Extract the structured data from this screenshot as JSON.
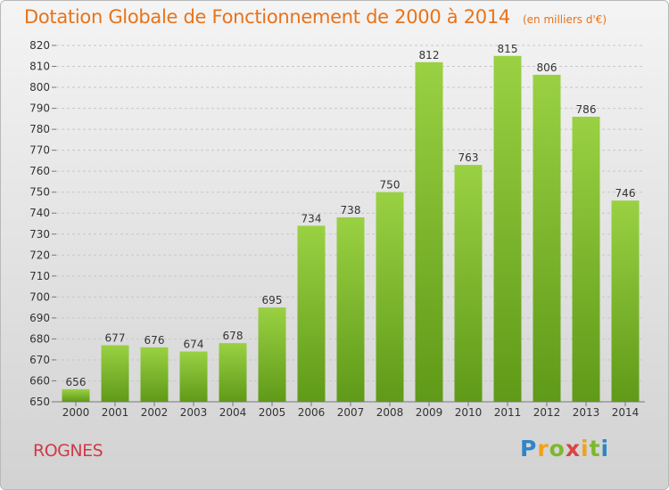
{
  "title": "Dotation Globale de Fonctionnement de 2000 à 2014",
  "unit_note": "(en milliers d'€)",
  "commune": "ROGNES",
  "brand": "Proxiti",
  "colors": {
    "title": "#e8731a",
    "commune": "#cf3a48",
    "bar_top": "#9ad143",
    "bar_bottom": "#5f9a18",
    "grid": "#c7c7c7"
  },
  "chart_data": {
    "type": "bar",
    "title": "Dotation Globale de Fonctionnement de 2000 à 2014",
    "subtitle": "(en milliers d'€)",
    "categories": [
      "2000",
      "2001",
      "2002",
      "2003",
      "2004",
      "2005",
      "2006",
      "2007",
      "2008",
      "2009",
      "2010",
      "2011",
      "2012",
      "2013",
      "2014"
    ],
    "values": [
      656,
      677,
      676,
      674,
      678,
      695,
      734,
      738,
      750,
      812,
      763,
      815,
      806,
      786,
      746
    ],
    "ylim": [
      650,
      820
    ],
    "ytick_step": 10,
    "grid": true,
    "legend": "none"
  }
}
